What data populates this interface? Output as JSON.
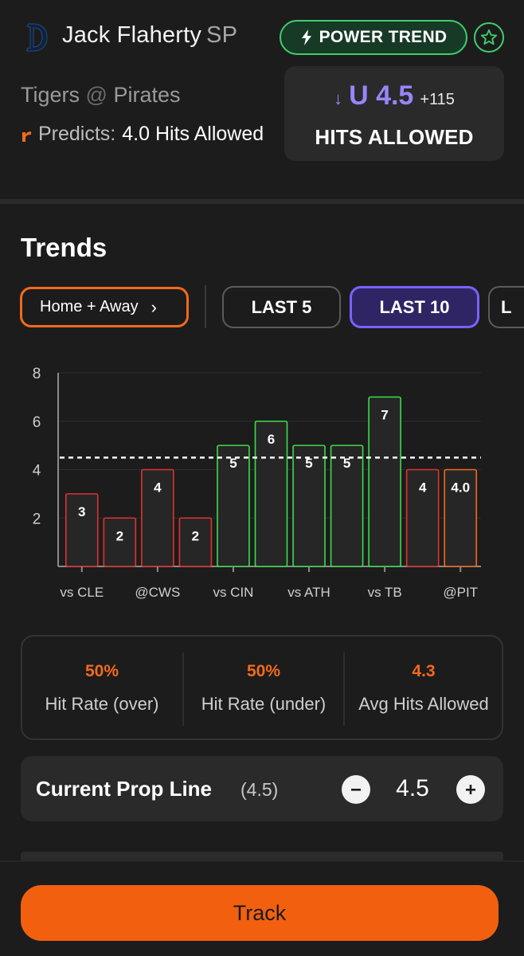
{
  "header": {
    "player_name": "Jack Flaherty",
    "position": "SP",
    "badge_label": "POWER TREND",
    "team": "Tigers",
    "at_symbol": "@",
    "opponent": "Pirates",
    "predicts_label": "Predicts:",
    "predicts_value": "4.0 Hits Allowed",
    "colors": {
      "badge_green": "#3fcf6c",
      "brand_orange": "#f26a1b",
      "accent_purple": "#9a84ff"
    }
  },
  "line_card": {
    "arrow": "↓",
    "value": "U 4.5",
    "odds": "+115",
    "market": "HITS ALLOWED"
  },
  "trends": {
    "title": "Trends",
    "filter_label": "Home + Away",
    "chips": [
      {
        "label": "LAST 5",
        "active": false
      },
      {
        "label": "LAST 10",
        "active": true
      },
      {
        "label": "L",
        "active": false
      }
    ]
  },
  "chart_data": {
    "type": "bar",
    "categories": [
      "",
      "",
      "",
      "",
      "",
      "",
      "",
      "",
      "",
      "",
      ""
    ],
    "x_tick_labels": [
      "vs CLE",
      "@CWS",
      "vs CIN",
      "vs ATH",
      "vs TB",
      "@PIT"
    ],
    "values": [
      3,
      2,
      4,
      2,
      5,
      6,
      5,
      5,
      7,
      4,
      4.0
    ],
    "data_labels": [
      "3",
      "2",
      "4",
      "2",
      "5",
      "6",
      "5",
      "5",
      "7",
      "4",
      "4.0"
    ],
    "bar_status": [
      "under",
      "under",
      "under",
      "under",
      "over",
      "over",
      "over",
      "over",
      "over",
      "under",
      "projection"
    ],
    "status_colors": {
      "over": "#3ddc4a",
      "under": "#e0312e",
      "projection": "#f26a1b"
    },
    "reference_line": 4.5,
    "yticks": [
      "2",
      "4",
      "6",
      "8"
    ],
    "ylim": [
      0,
      8
    ],
    "grid": true,
    "title": "",
    "xlabel": "",
    "ylabel": ""
  },
  "stats": [
    {
      "value": "50%",
      "label": "Hit Rate (over)"
    },
    {
      "value": "50%",
      "label": "Hit Rate (under)"
    },
    {
      "value": "4.3",
      "label": "Avg Hits Allowed"
    }
  ],
  "prop_line": {
    "label": "Current Prop Line",
    "sub": "(4.5)",
    "value": "4.5"
  },
  "footer": {
    "track_label": "Track"
  }
}
